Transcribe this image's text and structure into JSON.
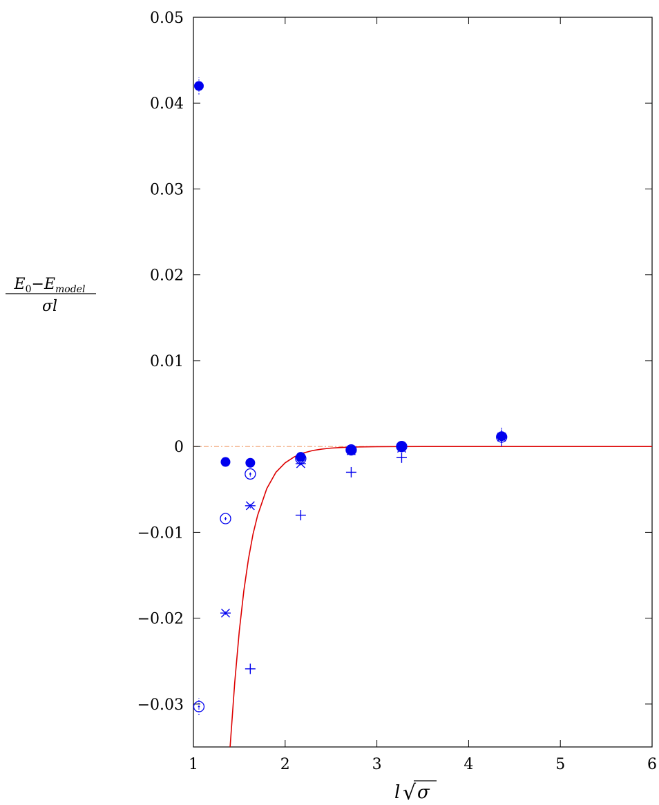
{
  "chart_data": {
    "type": "scatter",
    "title": "",
    "xlabel": "l√σ",
    "xlabel_parts": {
      "l": "l",
      "sigma": "σ"
    },
    "ylabel": "(E0 − E_model) / (σ l)",
    "ylabel_parts": {
      "E": "E",
      "sub0": "0",
      "minus": "−",
      "sub_model": "model",
      "sigma": "σ",
      "l": "l"
    },
    "xlim": [
      1,
      6
    ],
    "ylim": [
      -0.035,
      0.05
    ],
    "xticks": [
      1,
      2,
      3,
      4,
      5,
      6
    ],
    "xtick_labels": [
      "1",
      "2",
      "3",
      "4",
      "5",
      "6"
    ],
    "yticks": [
      -0.03,
      -0.02,
      -0.01,
      0,
      0.01,
      0.02,
      0.03,
      0.04,
      0.05
    ],
    "ytick_labels": [
      "−0.03",
      "−0.02",
      "−0.01",
      "0",
      "0.01",
      "0.02",
      "0.03",
      "0.04",
      "0.05"
    ],
    "grid": false,
    "legend": "none",
    "colors": {
      "points": "#0000ee",
      "curve": "#dd0000",
      "reference": "#f0a070"
    },
    "reference_line_y": 0,
    "curve": {
      "x": [
        1.4,
        1.45,
        1.5,
        1.55,
        1.6,
        1.65,
        1.7,
        1.8,
        1.9,
        2.0,
        2.1,
        2.2,
        2.3,
        2.4,
        2.5,
        2.6,
        2.7,
        2.8,
        3.0,
        3.2,
        3.5,
        4.0,
        5.0,
        6.0
      ],
      "y": [
        -0.035,
        -0.0275,
        -0.0215,
        -0.0168,
        -0.0131,
        -0.0102,
        -0.008,
        -0.0049,
        -0.003,
        -0.0019,
        -0.0012,
        -0.00075,
        -0.00047,
        -0.0003,
        -0.00019,
        -0.00012,
        -8e-05,
        -5e-05,
        -2e-05,
        -1e-05,
        0,
        0,
        0,
        0
      ]
    },
    "series": [
      {
        "marker": "filled-circle",
        "points": [
          {
            "x": 1.06,
            "y": 0.042,
            "err": 0.001
          },
          {
            "x": 1.35,
            "y": -0.0018,
            "err": 0.0002
          },
          {
            "x": 1.62,
            "y": -0.0019,
            "err": 0.0002
          },
          {
            "x": 2.17,
            "y": -0.0012,
            "err": 0.0002
          },
          {
            "x": 2.72,
            "y": -0.0004,
            "err": 0.0002
          },
          {
            "x": 3.27,
            "y": 0.0,
            "err": 0.0003
          },
          {
            "x": 4.36,
            "y": 0.0012,
            "err": 0.001
          }
        ]
      },
      {
        "marker": "circle-dot",
        "points": [
          {
            "x": 1.06,
            "y": -0.0303,
            "err": 0.001
          },
          {
            "x": 1.35,
            "y": -0.0084,
            "err": 0.0002
          },
          {
            "x": 1.62,
            "y": -0.0032,
            "err": 0.0003
          },
          {
            "x": 2.17,
            "y": -0.0014,
            "err": 0.0002
          },
          {
            "x": 2.72,
            "y": -0.0004,
            "err": 0.0002
          },
          {
            "x": 3.27,
            "y": 0.0,
            "err": 0.0003
          },
          {
            "x": 4.36,
            "y": 0.0011,
            "err": 0.001
          }
        ]
      },
      {
        "marker": "asterisk",
        "points": [
          {
            "x": 1.35,
            "y": -0.0194,
            "err": 0.0002
          },
          {
            "x": 1.62,
            "y": -0.0069,
            "err": 0.0003
          },
          {
            "x": 2.17,
            "y": -0.002,
            "err": 0.0002
          },
          {
            "x": 2.72,
            "y": -0.0005,
            "err": 0.0002
          },
          {
            "x": 3.27,
            "y": -0.0002,
            "err": 0.0003
          },
          {
            "x": 4.36,
            "y": 0.0011,
            "err": 0.001
          }
        ]
      },
      {
        "marker": "plus",
        "points": [
          {
            "x": 1.62,
            "y": -0.0259,
            "err": 0.0003
          },
          {
            "x": 2.17,
            "y": -0.008,
            "err": 0.0002
          },
          {
            "x": 2.72,
            "y": -0.003,
            "err": 0.0002
          },
          {
            "x": 3.27,
            "y": -0.0013,
            "err": 0.0003
          },
          {
            "x": 4.36,
            "y": 0.001,
            "err": 0.001
          }
        ]
      }
    ]
  }
}
